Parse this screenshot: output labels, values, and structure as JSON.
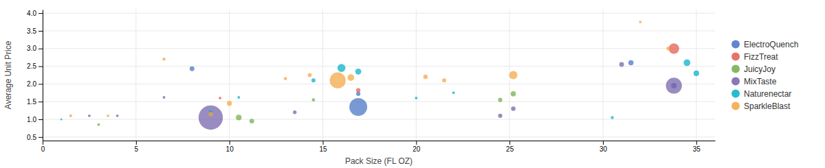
{
  "chart_data": {
    "type": "scatter",
    "xlabel": "Pack Size (FL OZ)",
    "ylabel": "Average Unit Price",
    "xlim": [
      0,
      36
    ],
    "ylim": [
      0.4,
      4.1
    ],
    "xticks": [
      0,
      5,
      10,
      15,
      20,
      25,
      30,
      35
    ],
    "yticks": [
      0.5,
      {
        "value": 1.0,
        "label": "1.0"
      },
      1.5,
      {
        "value": 2.0,
        "label": "2.0"
      },
      2.5,
      {
        "value": 3.0,
        "label": "3.0"
      },
      3.5,
      {
        "value": 4.0,
        "label": "4.0"
      }
    ],
    "grid": true,
    "legend": "right",
    "series": [
      {
        "name": "ElectroQuench",
        "color": "#4472c4",
        "x": [
          8.0,
          16.9,
          16.9,
          31.5,
          33.8
        ],
        "values": [
          2.43,
          1.72,
          1.35,
          2.6,
          1.95
        ],
        "sizes": [
          25,
          20,
          350,
          30,
          35
        ]
      },
      {
        "name": "FizzTreat",
        "color": "#e05a4b",
        "x": [
          9.5,
          16.9,
          33.8
        ],
        "values": [
          1.6,
          1.82,
          3.0
        ],
        "sizes": [
          8,
          20,
          120
        ]
      },
      {
        "name": "JuicyJoy",
        "color": "#70ad47",
        "x": [
          3.0,
          10.5,
          11.2,
          14.5,
          24.5,
          25.2
        ],
        "values": [
          0.85,
          1.05,
          0.95,
          1.55,
          1.55,
          1.72
        ],
        "sizes": [
          8,
          35,
          25,
          12,
          20,
          30
        ]
      },
      {
        "name": "MixTaste",
        "color": "#7360a8",
        "x": [
          2.5,
          4.0,
          6.5,
          9.0,
          13.5,
          24.5,
          25.2,
          31.0,
          33.8
        ],
        "values": [
          1.1,
          1.1,
          1.62,
          1.05,
          1.2,
          1.1,
          1.3,
          2.55,
          1.95
        ],
        "sizes": [
          8,
          8,
          8,
          650,
          15,
          20,
          22,
          25,
          280
        ]
      },
      {
        "name": "Naturenectar",
        "color": "#00b0c8",
        "x": [
          1.0,
          9.0,
          10.5,
          14.5,
          16.0,
          16.9,
          20.0,
          22.0,
          30.5,
          34.5,
          35.0
        ],
        "values": [
          1.0,
          1.2,
          1.62,
          2.1,
          2.45,
          2.35,
          1.6,
          1.75,
          1.05,
          2.6,
          2.3
        ],
        "sizes": [
          5,
          18,
          8,
          18,
          70,
          40,
          8,
          8,
          10,
          50,
          35
        ]
      },
      {
        "name": "SparkleBlast",
        "color": "#f4a540",
        "x": [
          1.5,
          3.5,
          6.5,
          9.0,
          10.0,
          13.0,
          14.3,
          15.8,
          16.5,
          20.5,
          21.5,
          25.2,
          32.0,
          33.5
        ],
        "values": [
          1.1,
          1.1,
          2.7,
          1.15,
          1.45,
          2.15,
          2.25,
          2.1,
          2.18,
          2.2,
          2.1,
          2.25,
          3.75,
          3.0
        ],
        "sizes": [
          10,
          8,
          10,
          22,
          28,
          12,
          18,
          280,
          50,
          22,
          18,
          75,
          8,
          15
        ]
      }
    ]
  }
}
